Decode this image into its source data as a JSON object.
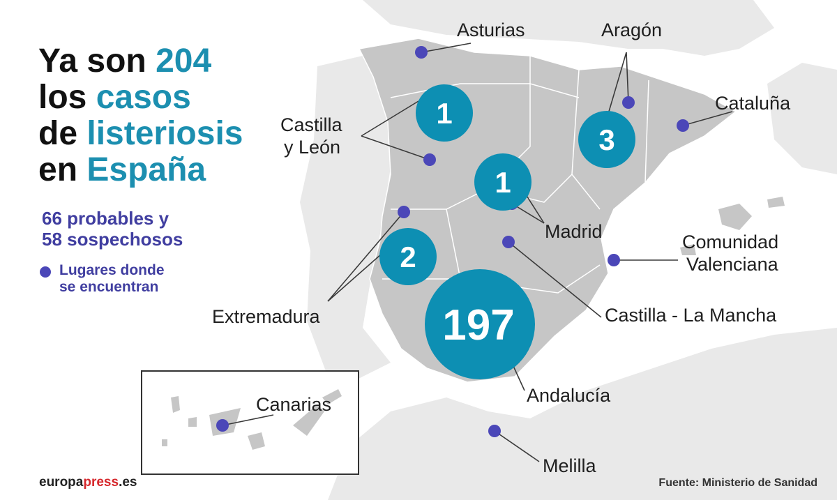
{
  "title": {
    "line1_pre": "Ya son",
    "line1_num": "204",
    "line2_pre": "los",
    "line2_hl": "casos",
    "line3_pre": "de",
    "line3_hl": "listeriosis",
    "line4_pre": "en",
    "line4_hl": "España"
  },
  "subtitle": {
    "line1": "66 probables y",
    "line2": "58 sospechosos"
  },
  "legend": {
    "line1": "Lugares donde",
    "line2": "se encuentran"
  },
  "bubbles": [
    {
      "id": "castilla-leon",
      "value": "1"
    },
    {
      "id": "aragon",
      "value": "3"
    },
    {
      "id": "madrid",
      "value": "1"
    },
    {
      "id": "extremadura",
      "value": "2"
    },
    {
      "id": "andalucia",
      "value": "197"
    }
  ],
  "regions": {
    "asturias": "Asturias",
    "aragon": "Aragón",
    "cataluna": "Cataluña",
    "castilla_leon_1": "Castilla",
    "castilla_leon_2": "y León",
    "madrid": "Madrid",
    "comunidad_valenciana_1": "Comunidad",
    "comunidad_valenciana_2": "Valenciana",
    "extremadura": "Extremadura",
    "castilla_la_mancha": "Castilla - La Mancha",
    "andalucia": "Andalucía",
    "canarias": "Canarias",
    "melilla": "Melilla"
  },
  "footer": {
    "brand_main": "europa",
    "brand_accent": "press",
    "brand_suffix": ".es",
    "source": "Fuente: Ministerio de Sanidad"
  },
  "colors": {
    "bubble": "#0d8fb3",
    "marker": "#4b47b8",
    "peninsula": "#c6c6c6",
    "neighbor": "#e9e9e9",
    "highlight_text": "#1c8fb0",
    "subtitle_text": "#403ea0"
  }
}
